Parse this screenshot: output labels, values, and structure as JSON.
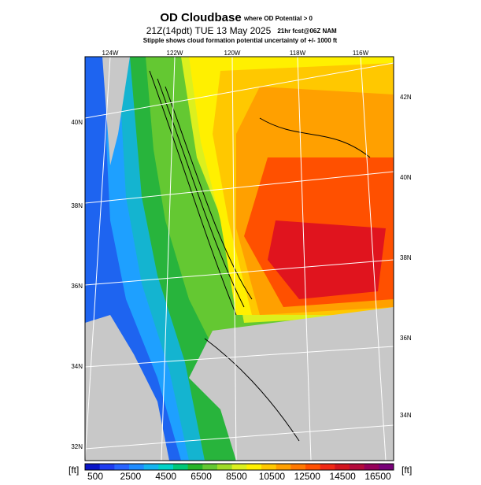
{
  "header": {
    "title": "OD Cloudbase",
    "title_note": "where OD Potential > 0",
    "valid": "21Z(14pdt) TUE 13 May 2025",
    "forecast": "21hr fcst@06Z NAM",
    "subtitle": "Stipple shows cloud formation potential uncertainty of +/- 1000 ft"
  },
  "map": {
    "top_labels": [
      "124W",
      "122W",
      "120W",
      "118W",
      "116W"
    ],
    "left_labels": [
      "40N",
      "38N",
      "36N",
      "34N",
      "32N"
    ],
    "right_labels": [
      "42N",
      "40N",
      "38N",
      "36N",
      "34N"
    ]
  },
  "colorbar": {
    "unit": "[ft]",
    "labels": [
      500,
      2500,
      4500,
      6500,
      8500,
      10500,
      12500,
      14500,
      16500
    ],
    "colors": [
      "#0a14c8",
      "#1e3cf0",
      "#2864ff",
      "#1e8cff",
      "#14b4f0",
      "#00d2c8",
      "#00c878",
      "#28b428",
      "#64c832",
      "#a0dc28",
      "#dcf01e",
      "#fff000",
      "#ffc800",
      "#ffa000",
      "#ff7800",
      "#ff5000",
      "#f02814",
      "#d2141e",
      "#b40a3c",
      "#96005a",
      "#780078"
    ]
  }
}
